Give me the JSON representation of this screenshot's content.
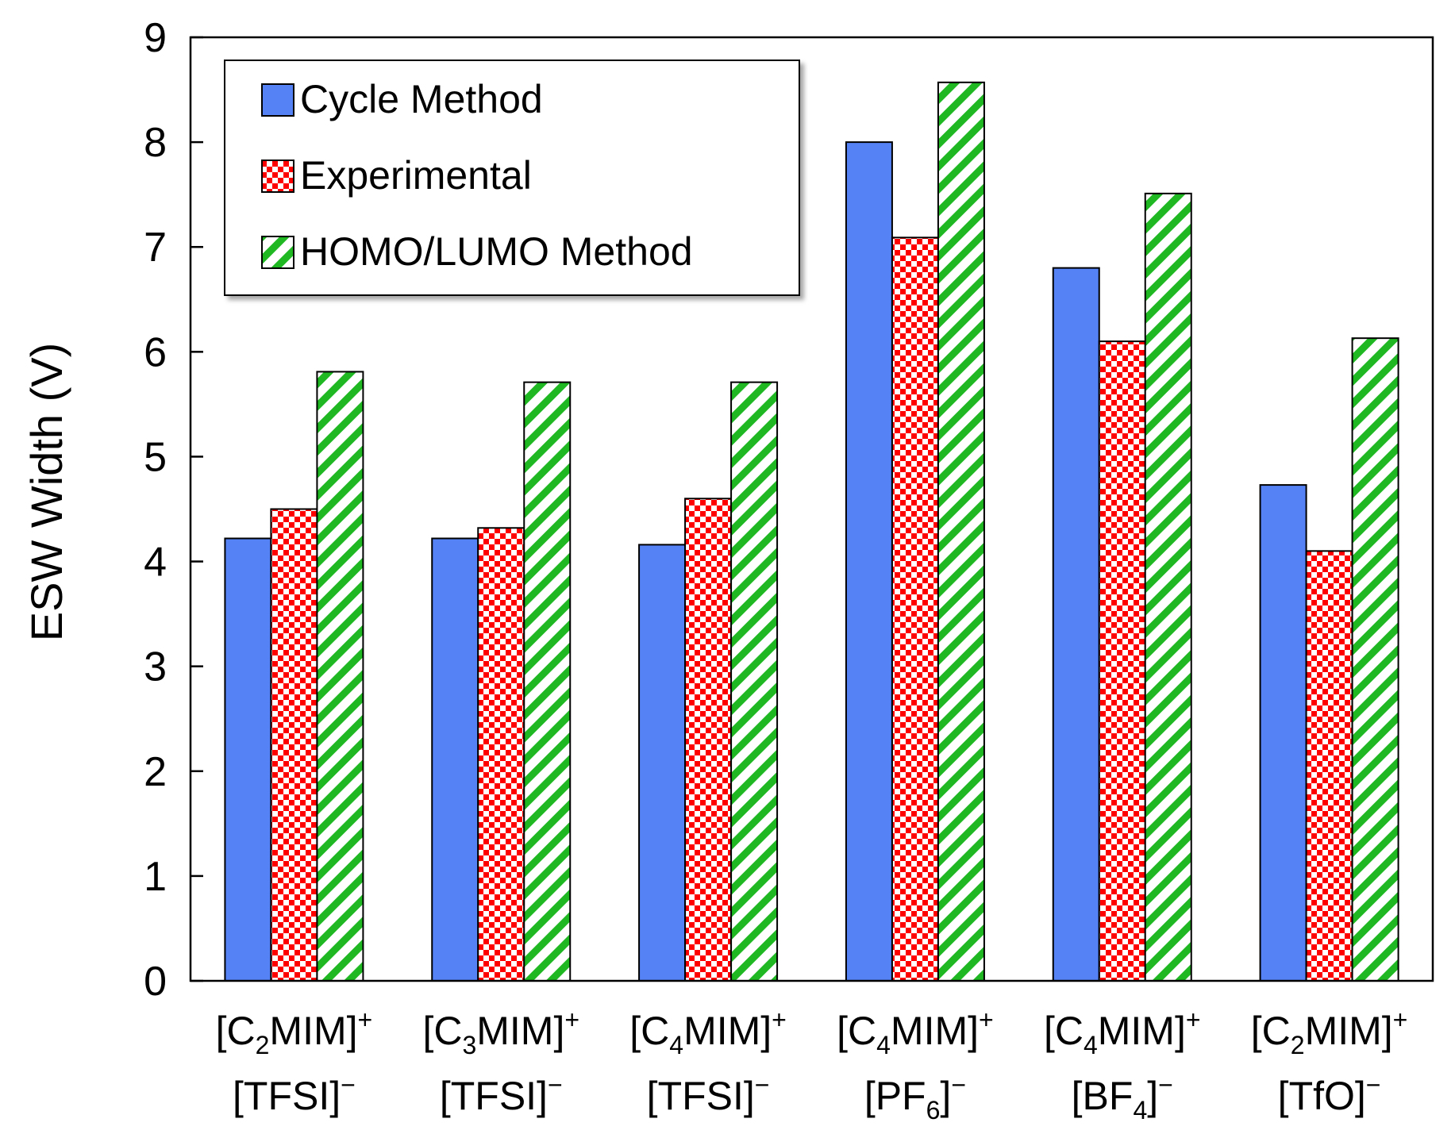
{
  "chart_data": {
    "type": "bar",
    "ylabel": "ESW Width (V)",
    "ylim": [
      0,
      9
    ],
    "yticks": [
      "0",
      "1",
      "2",
      "3",
      "4",
      "5",
      "6",
      "7",
      "8",
      "9"
    ],
    "grid": false,
    "legend_position": "top-left",
    "categories": [
      {
        "line1": {
          "pre": "[C",
          "sub": "2",
          "post": "MIM]",
          "sup": "+"
        },
        "line2": {
          "pre": "[TFSI]",
          "sub": "",
          "post": "",
          "sup": "−"
        }
      },
      {
        "line1": {
          "pre": "[C",
          "sub": "3",
          "post": "MIM]",
          "sup": "+"
        },
        "line2": {
          "pre": "[TFSI]",
          "sub": "",
          "post": "",
          "sup": "−"
        }
      },
      {
        "line1": {
          "pre": "[C",
          "sub": "4",
          "post": "MIM]",
          "sup": "+"
        },
        "line2": {
          "pre": "[TFSI]",
          "sub": "",
          "post": "",
          "sup": "−"
        }
      },
      {
        "line1": {
          "pre": "[C",
          "sub": "4",
          "post": "MIM]",
          "sup": "+"
        },
        "line2": {
          "pre": "[PF",
          "sub": "6",
          "post": "]",
          "sup": "−"
        }
      },
      {
        "line1": {
          "pre": "[C",
          "sub": "4",
          "post": "MIM]",
          "sup": "+"
        },
        "line2": {
          "pre": "[BF",
          "sub": "4",
          "post": "]",
          "sup": "−"
        }
      },
      {
        "line1": {
          "pre": "[C",
          "sub": "2",
          "post": "MIM]",
          "sup": "+"
        },
        "line2": {
          "pre": "[TfO]",
          "sub": "",
          "post": "",
          "sup": "−"
        }
      }
    ],
    "series": [
      {
        "name": "Cycle Method",
        "pattern": "solid",
        "color": "#5582f5",
        "values": [
          4.22,
          4.22,
          4.16,
          8.0,
          6.8,
          4.73
        ]
      },
      {
        "name": "Experimental",
        "pattern": "checker",
        "color": "#ff0000",
        "values": [
          4.5,
          4.32,
          4.6,
          7.09,
          6.1,
          4.1
        ]
      },
      {
        "name": "HOMO/LUMO Method",
        "pattern": "diagonal-stripes",
        "color": "#1fb823",
        "values": [
          5.81,
          5.71,
          5.71,
          8.57,
          7.51,
          6.13
        ]
      }
    ]
  }
}
